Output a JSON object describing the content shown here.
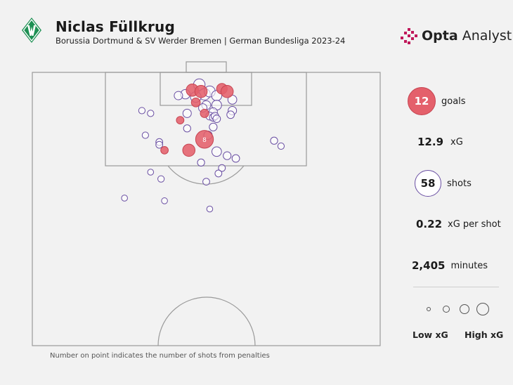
{
  "header": {
    "title": "Niclas Füllkrug",
    "subtitle": "Borussia Dortmund & SV Werder Bremen | German Bundesliga 2023-24"
  },
  "brand": {
    "name_bold": "Opta",
    "name_rest": " Analyst"
  },
  "stats": {
    "goals": {
      "value": "12",
      "label": "goals"
    },
    "xg": {
      "value": "12.9",
      "label": "xG"
    },
    "shots": {
      "value": "58",
      "label": "shots"
    },
    "xg_per_shot": {
      "value": "0.22",
      "label": "xG per shot"
    },
    "minutes": {
      "value": "2,405",
      "label": "minutes"
    }
  },
  "legend": {
    "low": "Low xG",
    "high": "High xG"
  },
  "footnote": "Number on point indicates the number of shots from penalties",
  "colors": {
    "goal": "#e4606b",
    "goal_stroke": "#c64552",
    "shot_stroke": "#6a4fa3",
    "pitch_line": "#9a9a9a",
    "background": "#f2f2f2"
  },
  "chart_data": {
    "type": "scatter",
    "title": "Niclas Füllkrug",
    "encoding": "pitch position (% of length from goal line, % of width from left touchline), size = xG, fill = goal",
    "penalty_label": "8",
    "shots": [
      {
        "x": 46.0,
        "y": 6.5,
        "xg": 0.3,
        "goal": true
      },
      {
        "x": 48.5,
        "y": 7.0,
        "xg": 0.3,
        "goal": true
      },
      {
        "x": 54.5,
        "y": 6.0,
        "xg": 0.2,
        "goal": true
      },
      {
        "x": 56.0,
        "y": 7.0,
        "xg": 0.3,
        "goal": true
      },
      {
        "x": 48.0,
        "y": 4.5,
        "xg": 0.25,
        "goal": false
      },
      {
        "x": 49.5,
        "y": 8.0,
        "xg": 0.25,
        "goal": false
      },
      {
        "x": 51.0,
        "y": 7.0,
        "xg": 0.22,
        "goal": false
      },
      {
        "x": 47.0,
        "y": 9.0,
        "xg": 0.2,
        "goal": false
      },
      {
        "x": 53.0,
        "y": 8.5,
        "xg": 0.18,
        "goal": false
      },
      {
        "x": 44.0,
        "y": 8.0,
        "xg": 0.14,
        "goal": false
      },
      {
        "x": 42.0,
        "y": 8.5,
        "xg": 0.1,
        "goal": false
      },
      {
        "x": 53.0,
        "y": 12.0,
        "xg": 0.16,
        "goal": false
      },
      {
        "x": 57.5,
        "y": 10.0,
        "xg": 0.12,
        "goal": false
      },
      {
        "x": 47.0,
        "y": 11.0,
        "xg": 0.12,
        "goal": true
      },
      {
        "x": 50.0,
        "y": 12.0,
        "xg": 0.12,
        "goal": false
      },
      {
        "x": 52.0,
        "y": 14.5,
        "xg": 0.1,
        "goal": false
      },
      {
        "x": 49.0,
        "y": 13.0,
        "xg": 0.1,
        "goal": false
      },
      {
        "x": 49.5,
        "y": 15.0,
        "xg": 0.1,
        "goal": true
      },
      {
        "x": 44.5,
        "y": 15.0,
        "xg": 0.1,
        "goal": false
      },
      {
        "x": 51.0,
        "y": 16.0,
        "xg": 0.08,
        "goal": false
      },
      {
        "x": 52.0,
        "y": 16.5,
        "xg": 0.07,
        "goal": false
      },
      {
        "x": 52.5,
        "y": 16.0,
        "xg": 0.07,
        "goal": false
      },
      {
        "x": 53.0,
        "y": 17.0,
        "xg": 0.07,
        "goal": false
      },
      {
        "x": 57.5,
        "y": 14.0,
        "xg": 0.1,
        "goal": false
      },
      {
        "x": 57.0,
        "y": 15.5,
        "xg": 0.07,
        "goal": false
      },
      {
        "x": 42.5,
        "y": 17.5,
        "xg": 0.07,
        "goal": true
      },
      {
        "x": 44.5,
        "y": 20.5,
        "xg": 0.06,
        "goal": false
      },
      {
        "x": 52.0,
        "y": 20.0,
        "xg": 0.08,
        "goal": false
      },
      {
        "x": 50.5,
        "y": 23.0,
        "xg": 0.1,
        "goal": false
      },
      {
        "x": 49.5,
        "y": 24.5,
        "xg": 0.76,
        "goal": true,
        "penalties": 8
      },
      {
        "x": 31.5,
        "y": 14.0,
        "xg": 0.04,
        "goal": false
      },
      {
        "x": 34.0,
        "y": 15.0,
        "xg": 0.04,
        "goal": false
      },
      {
        "x": 32.5,
        "y": 23.0,
        "xg": 0.04,
        "goal": false
      },
      {
        "x": 36.5,
        "y": 25.5,
        "xg": 0.05,
        "goal": false
      },
      {
        "x": 36.5,
        "y": 26.5,
        "xg": 0.05,
        "goal": false
      },
      {
        "x": 38.0,
        "y": 28.5,
        "xg": 0.07,
        "goal": true
      },
      {
        "x": 45.0,
        "y": 28.5,
        "xg": 0.3,
        "goal": true
      },
      {
        "x": 53.0,
        "y": 29.0,
        "xg": 0.15,
        "goal": false
      },
      {
        "x": 56.0,
        "y": 30.5,
        "xg": 0.08,
        "goal": false
      },
      {
        "x": 58.5,
        "y": 31.5,
        "xg": 0.07,
        "goal": false
      },
      {
        "x": 69.5,
        "y": 25.0,
        "xg": 0.06,
        "goal": false
      },
      {
        "x": 71.5,
        "y": 27.0,
        "xg": 0.04,
        "goal": false
      },
      {
        "x": 48.5,
        "y": 33.0,
        "xg": 0.06,
        "goal": false
      },
      {
        "x": 54.5,
        "y": 35.0,
        "xg": 0.05,
        "goal": false
      },
      {
        "x": 53.5,
        "y": 37.0,
        "xg": 0.05,
        "goal": false
      },
      {
        "x": 34.0,
        "y": 36.5,
        "xg": 0.03,
        "goal": false
      },
      {
        "x": 37.0,
        "y": 39.0,
        "xg": 0.04,
        "goal": false
      },
      {
        "x": 50.0,
        "y": 40.0,
        "xg": 0.05,
        "goal": false
      },
      {
        "x": 26.5,
        "y": 46.0,
        "xg": 0.03,
        "goal": false
      },
      {
        "x": 38.0,
        "y": 47.0,
        "xg": 0.03,
        "goal": false
      },
      {
        "x": 51.0,
        "y": 50.0,
        "xg": 0.03,
        "goal": false
      }
    ],
    "legend_sizes_xg": [
      0.05,
      0.15,
      0.3,
      0.5
    ]
  }
}
